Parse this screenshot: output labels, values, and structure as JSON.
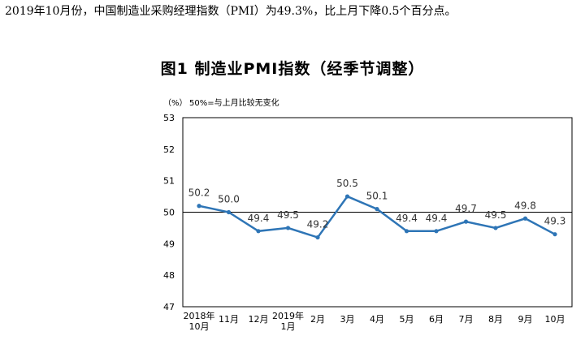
{
  "intro_text": "2019年10月份，中国制造业采购经理指数（PMI）为49.3%，比上月下降0.5个百分点。",
  "chart_data": {
    "type": "line",
    "title": "图1  制造业PMI指数（经季节调整）",
    "ylabel": "（%）",
    "note": "50%=与上月比较无变化",
    "categories": [
      [
        "2018年",
        "10月"
      ],
      [
        "11月"
      ],
      [
        "12月"
      ],
      [
        "2019年",
        "1月"
      ],
      [
        "2月"
      ],
      [
        "3月"
      ],
      [
        "4月"
      ],
      [
        "5月"
      ],
      [
        "6月"
      ],
      [
        "7月"
      ],
      [
        "8月"
      ],
      [
        "9月"
      ],
      [
        "10月"
      ]
    ],
    "values": [
      50.2,
      50.0,
      49.4,
      49.5,
      49.2,
      50.5,
      50.1,
      49.4,
      49.4,
      49.7,
      49.5,
      49.8,
      49.3
    ],
    "value_labels": [
      "50.2",
      "50.0",
      "49.4",
      "49.5",
      "49.2",
      "50.5",
      "50.1",
      "49.4",
      "49.4",
      "49.7",
      "49.5",
      "49.8",
      "49.3"
    ],
    "ylim": [
      47,
      53
    ],
    "yticks": [
      47,
      48,
      49,
      50,
      51,
      52,
      53
    ],
    "reference_line": 50,
    "grid": false,
    "line_color": "#2e75b6"
  }
}
